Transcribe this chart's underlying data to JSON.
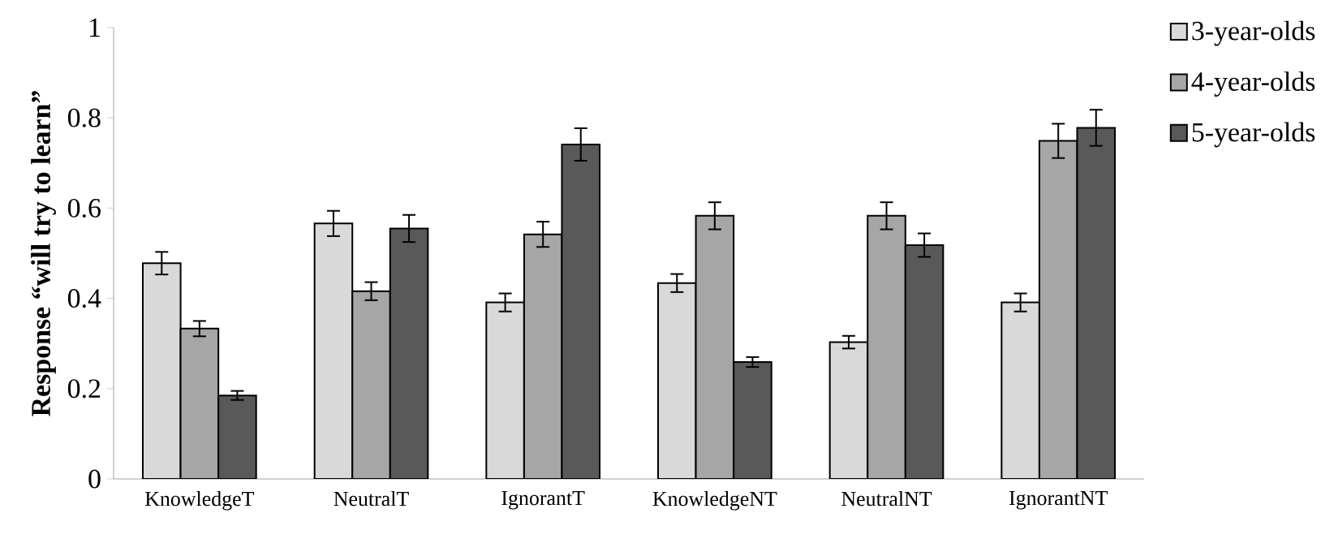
{
  "chart_data": {
    "type": "bar",
    "ylabel": "Response “will try to learn”",
    "categories": [
      "KnowledgeT",
      "NeutralT",
      "IgnorantT",
      "KnowledgeNT",
      "NeutralNT",
      "IgnorantNT"
    ],
    "series": [
      {
        "name": "3-year-olds",
        "color": "#d9d9d9",
        "values": [
          0.478,
          0.566,
          0.391,
          0.434,
          0.303,
          0.391
        ],
        "errors": [
          0.025,
          0.028,
          0.02,
          0.02,
          0.014,
          0.02
        ]
      },
      {
        "name": "4-year-olds",
        "color": "#a6a6a6",
        "values": [
          0.333,
          0.416,
          0.542,
          0.583,
          0.583,
          0.749
        ],
        "errors": [
          0.017,
          0.02,
          0.028,
          0.03,
          0.03,
          0.038
        ]
      },
      {
        "name": "5-year-olds",
        "color": "#595959",
        "values": [
          0.185,
          0.555,
          0.741,
          0.259,
          0.518,
          0.778
        ],
        "errors": [
          0.01,
          0.03,
          0.036,
          0.011,
          0.026,
          0.04
        ]
      }
    ],
    "ylim": [
      0,
      1
    ],
    "yticks": [
      0,
      0.2,
      0.4,
      0.6,
      0.8,
      1
    ],
    "legend": "right",
    "grid": false
  }
}
